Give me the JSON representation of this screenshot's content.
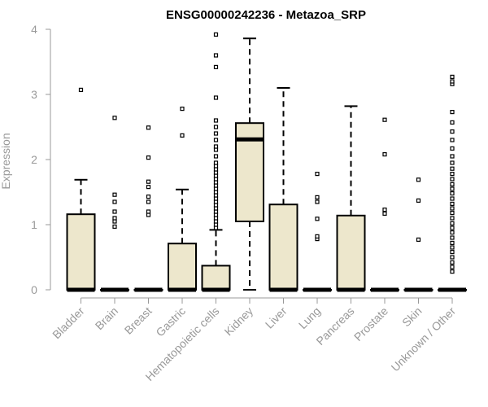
{
  "chart_data": {
    "type": "boxplot",
    "title": "ENSG00000242236 - Metazoa_SRP",
    "xlabel": "",
    "ylabel": "Expression",
    "ylim": [
      0,
      4
    ],
    "yticks": [
      0,
      1,
      2,
      3,
      4
    ],
    "box_fill": "#ede7cc",
    "categories": [
      "Bladder",
      "Brain",
      "Breast",
      "Gastric",
      "Hematopoietic cells",
      "Kidney",
      "Liver",
      "Lung",
      "Pancreas",
      "Prostate",
      "Skin",
      "Unknown / Other"
    ],
    "boxes": [
      {
        "min": 0,
        "q1": 0,
        "median": 0,
        "q3": 1.16,
        "max": 1.69,
        "outliers": [
          3.07
        ]
      },
      {
        "min": 0,
        "q1": 0,
        "median": 0,
        "q3": 0,
        "max": 0,
        "outliers": [
          0.97,
          1.05,
          1.1,
          1.2,
          1.35,
          1.46,
          2.64
        ]
      },
      {
        "min": 0,
        "q1": 0,
        "median": 0,
        "q3": 0,
        "max": 0,
        "outliers": [
          1.15,
          1.2,
          1.35,
          1.43,
          1.58,
          1.66,
          2.03,
          2.49
        ]
      },
      {
        "min": 0,
        "q1": 0,
        "median": 0,
        "q3": 0.71,
        "max": 1.54,
        "outliers": [
          2.37,
          2.78
        ]
      },
      {
        "min": 0,
        "q1": 0,
        "median": 0,
        "q3": 0.37,
        "max": 0.92,
        "outliers": [
          0.95,
          1.0,
          1.05,
          1.1,
          1.15,
          1.2,
          1.25,
          1.3,
          1.35,
          1.4,
          1.45,
          1.5,
          1.55,
          1.6,
          1.65,
          1.7,
          1.75,
          1.8,
          1.85,
          1.9,
          1.95,
          2.05,
          2.15,
          2.2,
          2.3,
          2.4,
          2.5,
          2.6,
          2.95,
          3.42,
          3.6,
          3.92
        ]
      },
      {
        "min": 0,
        "q1": 1.05,
        "median": 2.31,
        "q3": 2.56,
        "max": 3.86,
        "outliers": []
      },
      {
        "min": 0,
        "q1": 0,
        "median": 0,
        "q3": 1.31,
        "max": 3.1,
        "outliers": []
      },
      {
        "min": 0,
        "q1": 0,
        "median": 0,
        "q3": 0,
        "max": 0,
        "outliers": [
          0.78,
          0.82,
          1.09,
          1.35,
          1.42,
          1.78
        ]
      },
      {
        "min": 0,
        "q1": 0,
        "median": 0,
        "q3": 1.14,
        "max": 2.82,
        "outliers": []
      },
      {
        "min": 0,
        "q1": 0,
        "median": 0,
        "q3": 0,
        "max": 0,
        "outliers": [
          1.17,
          1.23,
          2.08,
          2.61
        ]
      },
      {
        "min": 0,
        "q1": 0,
        "median": 0,
        "q3": 0,
        "max": 0,
        "outliers": [
          0.77,
          1.37,
          1.69
        ]
      },
      {
        "min": 0,
        "q1": 0,
        "median": 0,
        "q3": 0,
        "max": 0,
        "outliers": [
          0.28,
          0.35,
          0.42,
          0.5,
          0.58,
          0.65,
          0.72,
          0.8,
          0.88,
          0.95,
          1.02,
          1.1,
          1.18,
          1.25,
          1.32,
          1.4,
          1.48,
          1.55,
          1.62,
          1.7,
          1.78,
          1.86,
          1.95,
          2.05,
          2.17,
          2.3,
          2.43,
          2.57,
          2.73,
          3.16,
          3.2,
          3.27
        ]
      }
    ]
  }
}
